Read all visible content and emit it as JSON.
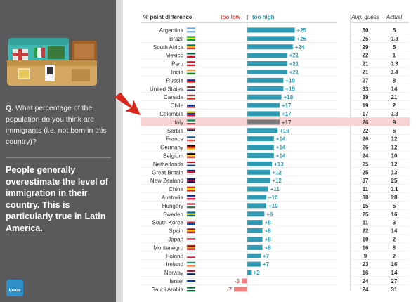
{
  "question": {
    "prefix": "Q.",
    "text": "What percentage of the population do you think are immigrants  (i.e. not born in this country)?"
  },
  "finding": "People generally overestimate the level of immigration in their country. This is particularly true in Latin America.",
  "logo_text": "Ipsos",
  "colors": {
    "too_high": "#2e9ab3",
    "too_low": "#f08080",
    "highlight_bar": "#7a7a7a",
    "highlight_row": "#f9d3d3",
    "panel_bg": "#5a5a5c"
  },
  "highlighted_country": "Italy",
  "chart_data": {
    "type": "bar",
    "orientation": "horizontal",
    "header": {
      "title": "% point difference",
      "too_low": "too low",
      "separator": "|",
      "too_high": "too high",
      "avg_guess": "Avg. guess",
      "actual": "Actual"
    },
    "categories": [
      "Argentina",
      "Brazil",
      "South Africa",
      "Mexico",
      "Peru",
      "India",
      "Russia",
      "United States",
      "Canada",
      "Chile",
      "Colombia",
      "Italy",
      "Serbia",
      "France",
      "Germany",
      "Belgium",
      "Netherlands",
      "Great Britain",
      "New Zealand",
      "China",
      "Australia",
      "Hungary",
      "Sweden",
      "South Korea",
      "Spain",
      "Japan",
      "Montenegro",
      "Poland",
      "Ireland",
      "Norway",
      "Israel",
      "Saudi Arabia"
    ],
    "values": [
      25,
      25,
      24,
      21,
      21,
      21,
      19,
      19,
      18,
      17,
      17,
      17,
      16,
      14,
      14,
      14,
      13,
      12,
      12,
      11,
      10,
      10,
      9,
      8,
      8,
      8,
      8,
      7,
      7,
      2,
      -3,
      -7
    ],
    "labels": [
      "+25",
      "+25",
      "+24",
      "+21",
      "+21",
      "+21",
      "+19",
      "+19",
      "+18",
      "+17",
      "+17",
      "+17",
      "+16",
      "+14",
      "+14",
      "+14",
      "+13",
      "+12",
      "+12",
      "+11",
      "+10",
      "+10",
      "+9",
      "+8",
      "+8",
      "+8",
      "+8",
      "+7",
      "+7",
      "+2",
      "-3",
      "-7"
    ],
    "avg_guess": [
      "30",
      "25",
      "29",
      "22",
      "21",
      "21",
      "27",
      "33",
      "39",
      "19",
      "17",
      "26",
      "22",
      "26",
      "26",
      "24",
      "25",
      "25",
      "37",
      "11",
      "38",
      "15",
      "25",
      "11",
      "22",
      "10",
      "16",
      "9",
      "23",
      "16",
      "24",
      "24"
    ],
    "actual": [
      "5",
      "0.3",
      "5",
      "1",
      "0.3",
      "0.4",
      "8",
      "14",
      "21",
      "2",
      "0.3",
      "9",
      "6",
      "12",
      "12",
      "10",
      "12",
      "13",
      "25",
      "0.1",
      "28",
      "5",
      "16",
      "3",
      "14",
      "2",
      "8",
      "2",
      "16",
      "14",
      "27",
      "31"
    ],
    "xlim": [
      -8,
      28
    ],
    "grid": false,
    "legend": "header"
  }
}
